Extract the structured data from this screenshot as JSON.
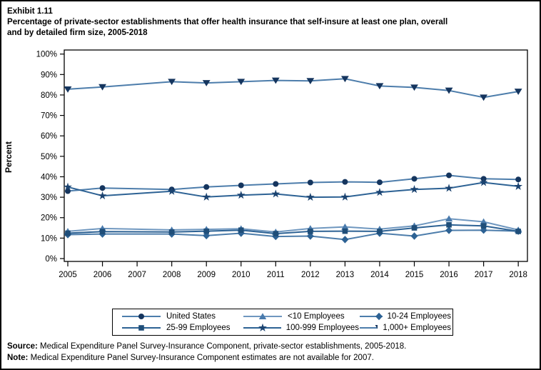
{
  "page": {
    "title_line1": "Exhibit 1.11",
    "title_line2": "Percentage of private-sector establishments that offer health insurance that self-insure at least one plan, overall",
    "title_line3": "and by detailed firm size, 2005-2018"
  },
  "footer": {
    "source_label": "Source:",
    "source_text": " Medical Expenditure Panel Survey-Insurance Component, private-sector establishments, 2005-2018.",
    "note_label": "Note:",
    "note_text": " Medical Expenditure Panel Survey-Insurance Component estimates are not available for 2007."
  },
  "chart_data": {
    "type": "line",
    "title": "Percentage of private-sector establishments that offer health insurance that self-insure at least one plan, overall and by detailed firm size, 2005-2018",
    "xlabel": "",
    "ylabel": "Percent",
    "ylim": [
      0,
      100
    ],
    "ytick_step": 10,
    "ytick_suffix": "%",
    "grid": false,
    "legend_position": "bottom-center",
    "missing_data_note": "2007 estimates not available (no markers plotted for 2007)",
    "x": [
      2005,
      2006,
      2007,
      2008,
      2009,
      2010,
      2011,
      2012,
      2013,
      2014,
      2015,
      2016,
      2017,
      2018
    ],
    "series": [
      {
        "name": "United States",
        "marker": "circle",
        "marker_color": "#15355e",
        "line_color": "#4d7dab",
        "values": [
          33.0,
          34.5,
          null,
          33.8,
          35.0,
          35.8,
          36.5,
          37.2,
          37.5,
          37.3,
          39.0,
          40.7,
          39.0,
          38.7
        ]
      },
      {
        "name": "<10 Employees",
        "marker": "triangle-up",
        "marker_color": "#4a7bad",
        "line_color": "#6f97bf",
        "values": [
          13.3,
          14.7,
          null,
          14.0,
          14.3,
          14.6,
          13.0,
          14.7,
          15.5,
          14.4,
          16.0,
          19.5,
          18.0,
          14.0
        ]
      },
      {
        "name": "10-24 Employees",
        "marker": "diamond",
        "marker_color": "#2d6294",
        "line_color": "#4d7dab",
        "values": [
          11.7,
          12.0,
          null,
          12.0,
          11.2,
          12.4,
          10.8,
          11.0,
          9.3,
          12.4,
          11.0,
          13.8,
          13.9,
          13.4
        ]
      },
      {
        "name": "25-99 Employees",
        "marker": "square",
        "marker_color": "#1f4e79",
        "line_color": "#2d6294",
        "values": [
          12.4,
          13.2,
          null,
          13.0,
          13.4,
          13.9,
          12.2,
          13.3,
          13.4,
          13.3,
          15.0,
          16.5,
          16.0,
          13.3
        ]
      },
      {
        "name": "100-999 Employees",
        "marker": "star",
        "marker_color": "#1b4370",
        "line_color": "#2d6294",
        "values": [
          35.0,
          30.7,
          null,
          32.9,
          30.1,
          31.0,
          31.6,
          30.0,
          30.1,
          32.4,
          33.8,
          34.4,
          37.2,
          35.3
        ]
      },
      {
        "name": "1,000+ Employees",
        "marker": "triangle-down",
        "marker_color": "#15355e",
        "line_color": "#4d7dab",
        "values": [
          82.8,
          83.9,
          null,
          86.5,
          85.9,
          86.5,
          87.1,
          86.9,
          87.9,
          84.4,
          83.7,
          82.2,
          78.8,
          81.7
        ]
      }
    ]
  }
}
